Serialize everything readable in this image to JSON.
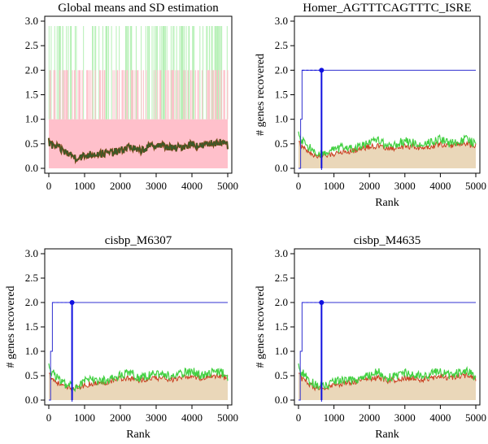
{
  "chart_data": [
    {
      "type": "area",
      "title": "Global means and SD estimation",
      "xlabel": "",
      "ylabel": "",
      "xlim": [
        0,
        5000
      ],
      "ylim": [
        0,
        3.0
      ],
      "xticks": [
        "0",
        "1000",
        "2000",
        "3000",
        "4000",
        "5000"
      ],
      "yticks": [
        "0.0",
        "0.5",
        "1.0",
        "1.5",
        "2.0",
        "2.5",
        "3.0"
      ],
      "grid": false,
      "legend": "none",
      "background_band": {
        "from": 0,
        "to": 1.0,
        "color": "#ffc0cb"
      },
      "background_spikes": [
        {
          "level": 2.0,
          "color": "#ffc0cb"
        },
        {
          "level": 2.9,
          "color": "#b5f0b5"
        }
      ],
      "mean_curve": {
        "color_line": "#3a5a2a",
        "color_fill": "#8b4513",
        "x": [
          0,
          250,
          500,
          750,
          1000,
          1250,
          1500,
          1750,
          2000,
          2250,
          2500,
          2750,
          3000,
          3250,
          3500,
          3750,
          4000,
          4250,
          4500,
          4750,
          5000
        ],
        "y": [
          0.5,
          0.42,
          0.32,
          0.22,
          0.25,
          0.3,
          0.3,
          0.32,
          0.35,
          0.45,
          0.35,
          0.42,
          0.48,
          0.45,
          0.4,
          0.45,
          0.5,
          0.45,
          0.5,
          0.55,
          0.45
        ]
      },
      "colors": {
        "accent": "#3a5a2a"
      }
    },
    {
      "type": "line",
      "title": "Homer_AGTTTCAGTTTC_ISRE",
      "xlabel": "Rank",
      "ylabel": "# genes recovered",
      "xlim": [
        0,
        5000
      ],
      "ylim": [
        0,
        3.0
      ],
      "xticks": [
        "0",
        "1000",
        "2000",
        "3000",
        "4000",
        "5000"
      ],
      "yticks": [
        "0.0",
        "0.5",
        "1.0",
        "1.5",
        "2.0",
        "2.5",
        "3.0"
      ],
      "grid": false,
      "legend": "none",
      "recovery_curve": {
        "color": "#3030d0",
        "x": [
          0,
          60,
          60,
          100,
          100,
          5000
        ],
        "y": [
          0,
          0,
          1.0,
          1.0,
          2.0,
          2.0
        ]
      },
      "max_enrichment": {
        "x": 650,
        "y": 2.0,
        "color": "#1010e0"
      },
      "mean_band_top": [
        0.5,
        0.35,
        0.25,
        0.25,
        0.3,
        0.35,
        0.35,
        0.4,
        0.45,
        0.45,
        0.4,
        0.42,
        0.45,
        0.45,
        0.42,
        0.45,
        0.5,
        0.45,
        0.5,
        0.5,
        0.45
      ],
      "mean_plus_sd_curve": [
        0.65,
        0.45,
        0.3,
        0.28,
        0.38,
        0.42,
        0.4,
        0.45,
        0.5,
        0.6,
        0.45,
        0.5,
        0.55,
        0.52,
        0.48,
        0.55,
        0.6,
        0.5,
        0.55,
        0.6,
        0.48
      ],
      "fill_color": "#ead7b9",
      "sd_color": "#40d040"
    },
    {
      "type": "line",
      "title": "cisbp_M6307",
      "xlabel": "Rank",
      "ylabel": "# genes recovered",
      "xlim": [
        0,
        5000
      ],
      "ylim": [
        0,
        3.0
      ],
      "xticks": [
        "0",
        "1000",
        "2000",
        "3000",
        "4000",
        "5000"
      ],
      "yticks": [
        "0.0",
        "0.5",
        "1.0",
        "1.5",
        "2.0",
        "2.5",
        "3.0"
      ],
      "grid": false,
      "legend": "none",
      "recovery_curve": {
        "color": "#3030d0",
        "x": [
          0,
          50,
          50,
          100,
          100,
          5000
        ],
        "y": [
          0,
          0,
          1.0,
          1.0,
          2.0,
          2.0
        ]
      },
      "max_enrichment": {
        "x": 650,
        "y": 2.0,
        "color": "#1010e0"
      },
      "mean_band_top": [
        0.5,
        0.35,
        0.25,
        0.25,
        0.3,
        0.35,
        0.35,
        0.4,
        0.45,
        0.45,
        0.4,
        0.42,
        0.45,
        0.45,
        0.42,
        0.45,
        0.5,
        0.45,
        0.5,
        0.5,
        0.45
      ],
      "mean_plus_sd_curve": [
        0.65,
        0.45,
        0.3,
        0.28,
        0.38,
        0.42,
        0.4,
        0.45,
        0.5,
        0.6,
        0.45,
        0.5,
        0.55,
        0.52,
        0.48,
        0.55,
        0.6,
        0.5,
        0.55,
        0.6,
        0.48
      ],
      "fill_color": "#ead7b9",
      "sd_color": "#40d040"
    },
    {
      "type": "line",
      "title": "cisbp_M4635",
      "xlabel": "Rank",
      "ylabel": "# genes recovered",
      "xlim": [
        0,
        5000
      ],
      "ylim": [
        0,
        3.0
      ],
      "xticks": [
        "0",
        "1000",
        "2000",
        "3000",
        "4000",
        "5000"
      ],
      "yticks": [
        "0.0",
        "0.5",
        "1.0",
        "1.5",
        "2.0",
        "2.5",
        "3.0"
      ],
      "grid": false,
      "legend": "none",
      "recovery_curve": {
        "color": "#3030d0",
        "x": [
          0,
          50,
          50,
          100,
          100,
          5000
        ],
        "y": [
          0,
          0,
          1.0,
          1.0,
          2.0,
          2.0
        ]
      },
      "max_enrichment": {
        "x": 650,
        "y": 2.0,
        "color": "#1010e0"
      },
      "mean_band_top": [
        0.5,
        0.35,
        0.25,
        0.25,
        0.3,
        0.35,
        0.35,
        0.4,
        0.45,
        0.45,
        0.4,
        0.42,
        0.45,
        0.45,
        0.42,
        0.45,
        0.5,
        0.45,
        0.5,
        0.5,
        0.45
      ],
      "mean_plus_sd_curve": [
        0.65,
        0.45,
        0.3,
        0.28,
        0.38,
        0.42,
        0.4,
        0.45,
        0.5,
        0.6,
        0.45,
        0.5,
        0.55,
        0.52,
        0.48,
        0.55,
        0.6,
        0.5,
        0.55,
        0.6,
        0.48
      ],
      "fill_color": "#ead7b9",
      "sd_color": "#40d040"
    }
  ]
}
